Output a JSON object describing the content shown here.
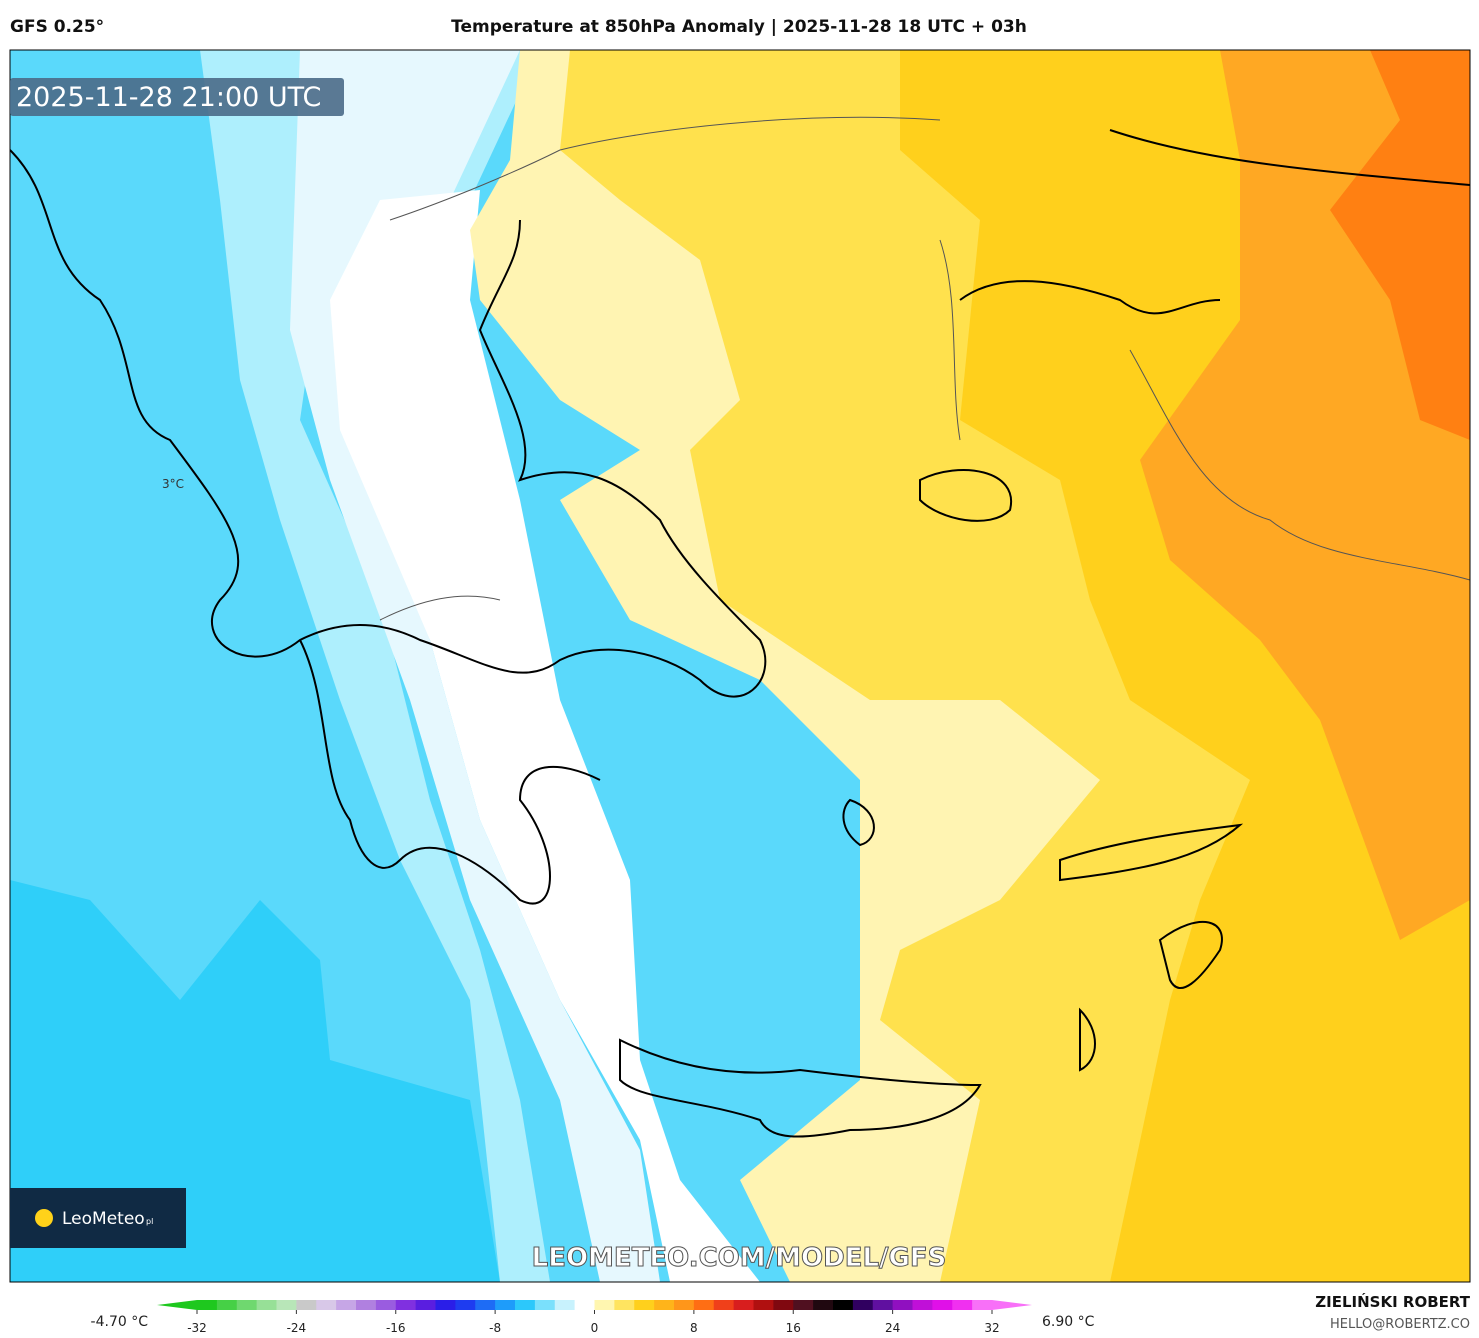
{
  "header": {
    "model": "GFS 0.25°",
    "title": "Temperature at 850hPa Anomaly | 2025-11-28 18 UTC + 03h"
  },
  "map": {
    "timestamp": "2025-11-28 21:00 UTC",
    "contour_label": "3°C",
    "watermark": "LEOMETEO.COM/MODEL/GFS",
    "logo": {
      "name": "LeoMeteo",
      "suffix": "pl"
    }
  },
  "colorbar": {
    "min_label": "-4.70 °C",
    "max_label": "6.90 °C",
    "ticks": [
      -32,
      -24,
      -16,
      -8,
      0,
      8,
      16,
      24,
      32
    ]
  },
  "footer": {
    "author": "ZIELIŃSKI ROBERT",
    "email": "HELLO@ROBERTZ.CO"
  }
}
